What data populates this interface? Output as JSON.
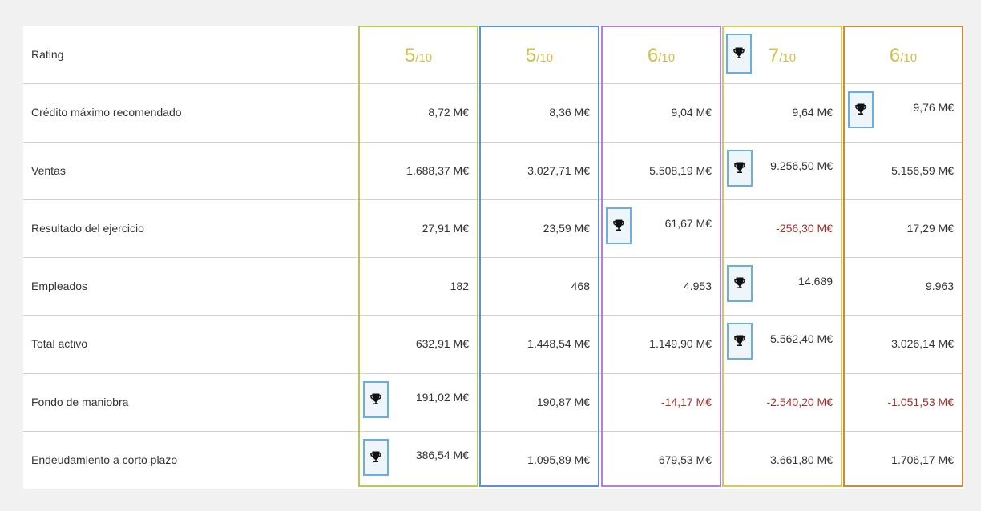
{
  "colors": {
    "rating_text": "#d2c04a",
    "negative": "#a0302a",
    "trophy_border": "#6aaee0",
    "columns": [
      "#b7c855",
      "#5b8fe0",
      "#b57ee0",
      "#d8c85a",
      "#d08a3a"
    ]
  },
  "icons": {
    "best_value": "trophy-icon"
  },
  "table": {
    "rows": [
      {
        "label": "Rating"
      },
      {
        "label": "Crédito máximo recomendado"
      },
      {
        "label": "Ventas"
      },
      {
        "label": "Resultado del ejercicio"
      },
      {
        "label": "Empleados"
      },
      {
        "label": "Total activo"
      },
      {
        "label": "Fondo de maniobra"
      },
      {
        "label": "Endeudamiento a corto plazo"
      }
    ],
    "columns": [
      {
        "rating": {
          "score": "5",
          "denominator": "/10",
          "trophy": false
        },
        "values": [
          {
            "text": "8,72 M€",
            "trophy": false,
            "negative": false
          },
          {
            "text": "1.688,37 M€",
            "trophy": false,
            "negative": false
          },
          {
            "text": "27,91 M€",
            "trophy": false,
            "negative": false
          },
          {
            "text": "182",
            "trophy": false,
            "negative": false
          },
          {
            "text": "632,91 M€",
            "trophy": false,
            "negative": false
          },
          {
            "text": "191,02 M€",
            "trophy": true,
            "negative": false
          },
          {
            "text": "386,54 M€",
            "trophy": true,
            "negative": false
          }
        ]
      },
      {
        "rating": {
          "score": "5",
          "denominator": "/10",
          "trophy": false
        },
        "values": [
          {
            "text": "8,36 M€",
            "trophy": false,
            "negative": false
          },
          {
            "text": "3.027,71 M€",
            "trophy": false,
            "negative": false
          },
          {
            "text": "23,59 M€",
            "trophy": false,
            "negative": false
          },
          {
            "text": "468",
            "trophy": false,
            "negative": false
          },
          {
            "text": "1.448,54 M€",
            "trophy": false,
            "negative": false
          },
          {
            "text": "190,87 M€",
            "trophy": false,
            "negative": false
          },
          {
            "text": "1.095,89 M€",
            "trophy": false,
            "negative": false
          }
        ]
      },
      {
        "rating": {
          "score": "6",
          "denominator": "/10",
          "trophy": false
        },
        "values": [
          {
            "text": "9,04 M€",
            "trophy": false,
            "negative": false
          },
          {
            "text": "5.508,19 M€",
            "trophy": false,
            "negative": false
          },
          {
            "text": "61,67 M€",
            "trophy": true,
            "negative": false
          },
          {
            "text": "4.953",
            "trophy": false,
            "negative": false
          },
          {
            "text": "1.149,90 M€",
            "trophy": false,
            "negative": false
          },
          {
            "text": "-14,17 M€",
            "trophy": false,
            "negative": true
          },
          {
            "text": "679,53 M€",
            "trophy": false,
            "negative": false
          }
        ]
      },
      {
        "rating": {
          "score": "7",
          "denominator": "/10",
          "trophy": true
        },
        "values": [
          {
            "text": "9,64 M€",
            "trophy": false,
            "negative": false
          },
          {
            "text": "9.256,50 M€",
            "trophy": true,
            "negative": false
          },
          {
            "text": "-256,30 M€",
            "trophy": false,
            "negative": true
          },
          {
            "text": "14.689",
            "trophy": true,
            "negative": false
          },
          {
            "text": "5.562,40 M€",
            "trophy": true,
            "negative": false
          },
          {
            "text": "-2.540,20 M€",
            "trophy": false,
            "negative": true
          },
          {
            "text": "3.661,80 M€",
            "trophy": false,
            "negative": false
          }
        ]
      },
      {
        "rating": {
          "score": "6",
          "denominator": "/10",
          "trophy": false
        },
        "values": [
          {
            "text": "9,76 M€",
            "trophy": true,
            "negative": false
          },
          {
            "text": "5.156,59 M€",
            "trophy": false,
            "negative": false
          },
          {
            "text": "17,29 M€",
            "trophy": false,
            "negative": false
          },
          {
            "text": "9.963",
            "trophy": false,
            "negative": false
          },
          {
            "text": "3.026,14 M€",
            "trophy": false,
            "negative": false
          },
          {
            "text": "-1.051,53 M€",
            "trophy": false,
            "negative": true
          },
          {
            "text": "1.706,17 M€",
            "trophy": false,
            "negative": false
          }
        ]
      }
    ]
  }
}
